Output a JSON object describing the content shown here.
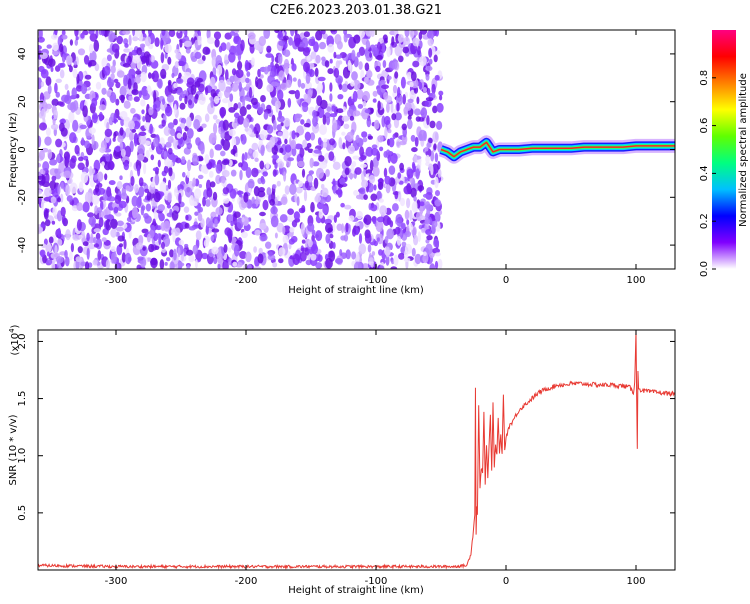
{
  "title": "C2E6.2023.203.01.38.G21",
  "chart_data": [
    {
      "type": "heatmap",
      "xlabel": "Height of straight line (km)",
      "ylabel": "Frequency (Hz)",
      "xlim": [
        -360,
        130
      ],
      "ylim": [
        -50,
        50
      ],
      "x_ticks": [
        -300,
        -200,
        -100,
        0,
        100
      ],
      "x_tick_labels": [
        "-300",
        "-200",
        "-100",
        "0",
        "100"
      ],
      "y_ticks": [
        -40,
        -20,
        0,
        20,
        40
      ],
      "y_tick_labels": [
        "-40",
        "-20",
        "0",
        "20",
        "40"
      ],
      "noise_region_x": [
        -360,
        -50
      ],
      "signal_track": {
        "x": [
          -50,
          -45,
          -40,
          -35,
          -30,
          -25,
          -20,
          -15,
          -10,
          -5,
          0,
          10,
          20,
          30,
          40,
          50,
          60,
          70,
          80,
          90,
          100,
          110,
          120,
          130
        ],
        "frequency": [
          0,
          -1,
          -3,
          -1,
          0,
          1,
          1,
          3,
          -1,
          0,
          0,
          0,
          0.5,
          0.5,
          0.5,
          0.5,
          1,
          1,
          1,
          1,
          1.5,
          1.5,
          1.5,
          1.5
        ]
      },
      "colorbar": {
        "label": "Normalized spectral amplitude",
        "range": [
          0,
          1
        ],
        "ticks": [
          0.0,
          0.2,
          0.4,
          0.6,
          0.8
        ],
        "tick_labels": [
          "0.0",
          "0.2",
          "0.4",
          "0.6",
          "0.8"
        ],
        "colors": [
          "#ffffff",
          "#8000ff",
          "#0000ff",
          "#00c0ff",
          "#00ff80",
          "#60ff00",
          "#ffff00",
          "#ff8000",
          "#ff0000",
          "#ff0080"
        ]
      },
      "grid": false
    },
    {
      "type": "line",
      "xlabel": "Height of straight line (km)",
      "ylabel": "SNR (10 * v/v)",
      "multiplier": "(x10",
      "multiplier_exp": "4",
      "xlim": [
        -360,
        130
      ],
      "ylim": [
        0,
        2.1
      ],
      "x_ticks": [
        -300,
        -200,
        -100,
        0,
        100
      ],
      "x_tick_labels": [
        "-300",
        "-200",
        "-100",
        "0",
        "100"
      ],
      "y_ticks": [
        0.5,
        1.0,
        1.5,
        2.0
      ],
      "y_tick_labels": [
        "0.5",
        "1.0",
        "1.5",
        "2.0"
      ],
      "line_color": "#e83a33",
      "series": [
        {
          "x": [
            -360,
            -300,
            -200,
            -100,
            -40,
            -30,
            -27,
            -25,
            -24,
            -23.5,
            -23,
            -22.5,
            -22,
            -21,
            -20,
            -19,
            -18,
            -17,
            -16,
            -15,
            -14,
            -13,
            -12,
            -11,
            -10,
            -9,
            -8,
            -7,
            -6,
            -5,
            -4,
            -3,
            -2,
            -1,
            0,
            2,
            5,
            10,
            15,
            20,
            25,
            30,
            35,
            40,
            45,
            50,
            55,
            60,
            70,
            80,
            90,
            95,
            98,
            99,
            100,
            100.5,
            101,
            101.5,
            102,
            103,
            105,
            110,
            120,
            130
          ],
          "values": [
            0.04,
            0.03,
            0.03,
            0.03,
            0.03,
            0.04,
            0.15,
            0.35,
            0.5,
            1.6,
            0.3,
            0.55,
            0.5,
            1.45,
            0.7,
            0.9,
            0.85,
            1.4,
            0.75,
            1.1,
            0.8,
            1.1,
            1.35,
            0.85,
            1.45,
            0.9,
            1.1,
            1.0,
            1.35,
            1.0,
            1.2,
            1.0,
            1.55,
            1.05,
            1.15,
            1.25,
            1.3,
            1.4,
            1.45,
            1.5,
            1.55,
            1.58,
            1.6,
            1.62,
            1.62,
            1.63,
            1.63,
            1.63,
            1.62,
            1.62,
            1.61,
            1.6,
            1.55,
            1.65,
            2.1,
            1.5,
            1.05,
            1.75,
            1.6,
            1.58,
            1.57,
            1.56,
            1.55,
            1.54
          ]
        }
      ],
      "grid": false
    }
  ]
}
